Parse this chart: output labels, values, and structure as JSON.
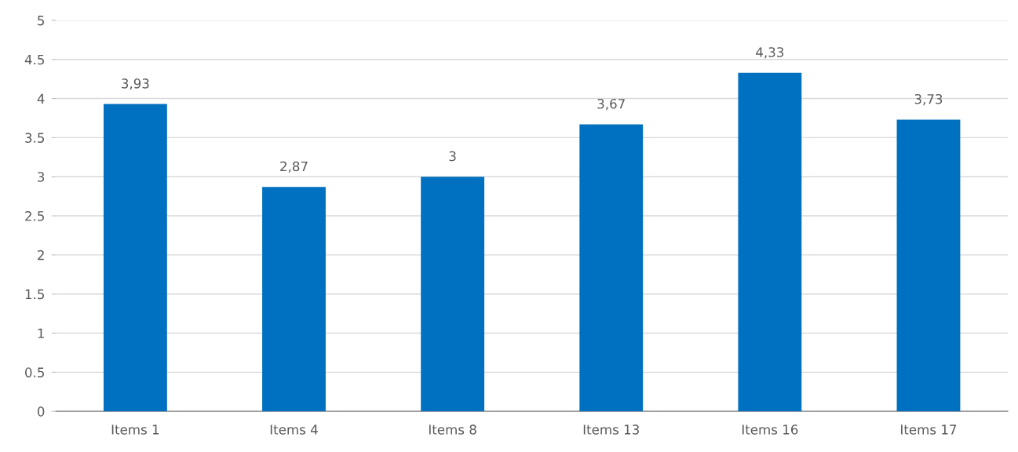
{
  "chart_data": {
    "type": "bar",
    "categories": [
      "Items 1",
      "Items 4",
      "Items 8",
      "Items 13",
      "Items 16",
      "Items 17"
    ],
    "values": [
      3.93,
      2.87,
      3,
      3.67,
      4.33,
      3.73
    ],
    "value_labels": [
      "3,93",
      "2,87",
      "3",
      "3,67",
      "4,33",
      "3,73"
    ],
    "color": "#0070c0",
    "ylim": [
      0,
      5
    ],
    "yticks": [
      0,
      0.5,
      1,
      1.5,
      2,
      2.5,
      3,
      3.5,
      4,
      4.5,
      5
    ],
    "grid": "y",
    "legend": false
  }
}
